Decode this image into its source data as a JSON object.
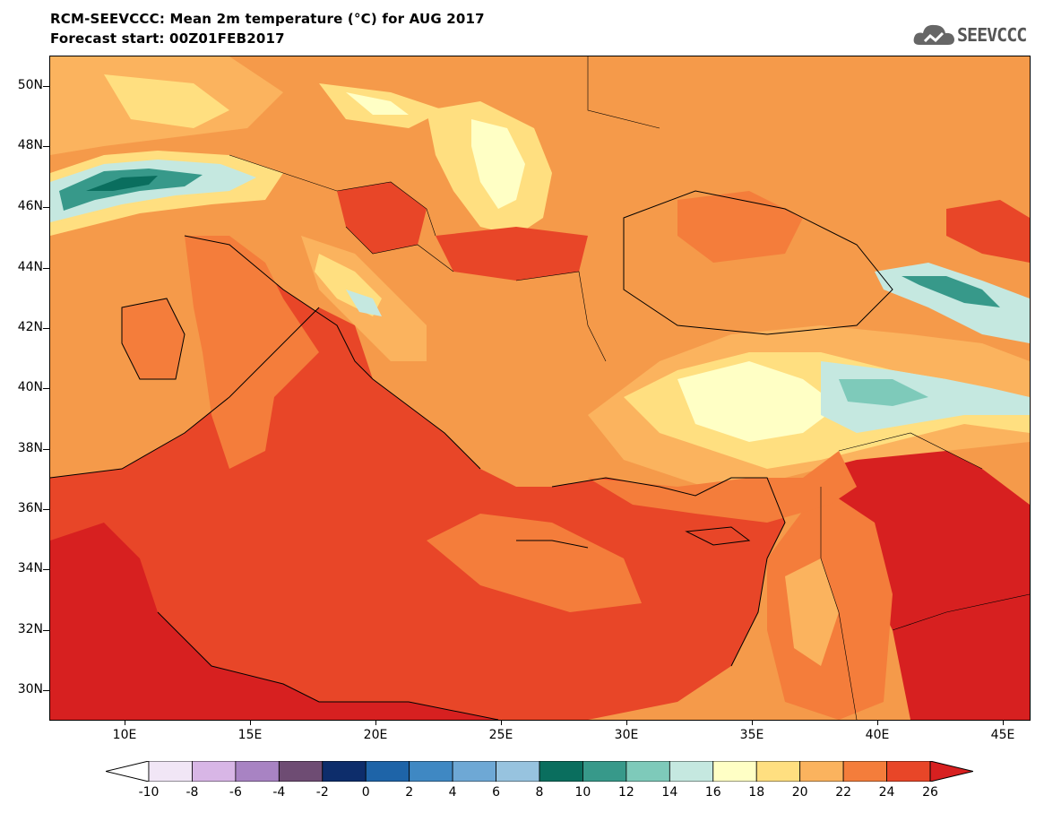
{
  "header": {
    "title": "RCM-SEEVCCC: Mean 2m temperature (°C) for AUG 2017",
    "subtitle": "Forecast start: 00Z01FEB2017",
    "logo_text": "SEEVCCC"
  },
  "map": {
    "lon_range": [
      7,
      46
    ],
    "lat_range": [
      29,
      51
    ],
    "lat_labels": [
      "50N",
      "48N",
      "46N",
      "44N",
      "42N",
      "40N",
      "38N",
      "36N",
      "34N",
      "32N",
      "30N"
    ],
    "lon_labels": [
      "10E",
      "15E",
      "20E",
      "25E",
      "30E",
      "35E",
      "40E",
      "45E"
    ]
  },
  "colorbar": {
    "labels": [
      "-10",
      "-8",
      "-6",
      "-4",
      "-2",
      "0",
      "2",
      "4",
      "6",
      "8",
      "10",
      "12",
      "14",
      "16",
      "18",
      "20",
      "22",
      "24",
      "26"
    ],
    "colors": [
      "#f1e6f6",
      "#d8b6e6",
      "#a883c3",
      "#6e4c73",
      "#0d2d6b",
      "#1e64a8",
      "#3f88c3",
      "#6ea8d5",
      "#97c3df",
      "#0a6e5e",
      "#37998a",
      "#7ecaba",
      "#c5e8e0",
      "#ffffc5",
      "#ffdf80",
      "#fbb35e",
      "#f47d3b",
      "#e84628",
      "#d72020"
    ],
    "under_color": "#ffffff",
    "over_color": "#d72020"
  }
}
